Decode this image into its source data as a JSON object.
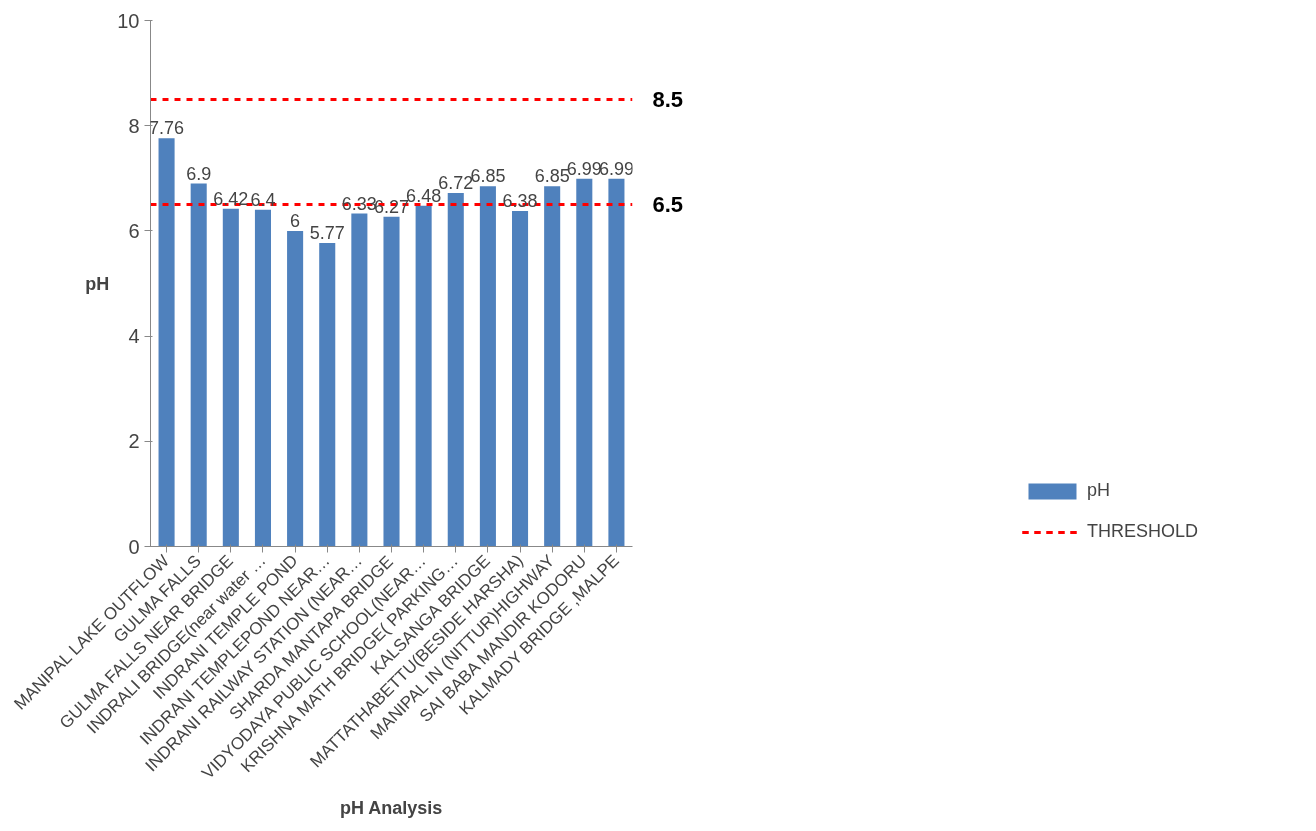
{
  "chart_data": {
    "type": "bar",
    "xlabel": "pH Analysis",
    "ylabel": "pH",
    "categories": [
      "MANIPAL LAKE OUTFLOW",
      "GULMA FALLS",
      "GULMA FALLS NEAR BRIDGE",
      "INDRALI BRIDGE(near water …",
      "INDRANI TEMPLE POND",
      "INDRANI TEMPLEPOND NEAR…",
      "INDRANI RAILWAY STATION (NEAR…",
      "SHARDA MANTAPA BRIDGE",
      "VIDYODAYA PUBLIC SCHOOL(NEAR…",
      "KRISHNA MATH BRIDGE( PARKING…",
      "KALSANGA BRIDGE",
      "MATTATHABETTU(BESIDE HARSHA)",
      "MANIPAL IN (NITTUR)HIGHWAY",
      "SAI BABA MANDIR KODORU",
      "KALMADY BRIDGE ,MALPE"
    ],
    "series": [
      {
        "name": "pH",
        "color": "#4f81bd",
        "values": [
          7.76,
          6.9,
          6.42,
          6.4,
          6,
          5.77,
          6.33,
          6.27,
          6.48,
          6.72,
          6.85,
          6.38,
          6.85,
          6.99,
          6.99
        ]
      }
    ],
    "ylim": [
      0,
      10
    ],
    "yticks": [
      0,
      2,
      4,
      6,
      8,
      10
    ],
    "ref_lines": [
      {
        "axis": "y",
        "value": 8.5,
        "label": "8.5",
        "color": "#ff0000",
        "line_style": "dashed"
      },
      {
        "axis": "y",
        "value": 6.5,
        "label": "6.5",
        "color": "#ff0000",
        "line_style": "dashed"
      }
    ],
    "annotations": [
      "THRESHOLD"
    ],
    "data_labels": true,
    "grid": false,
    "legend": "bottom right"
  }
}
